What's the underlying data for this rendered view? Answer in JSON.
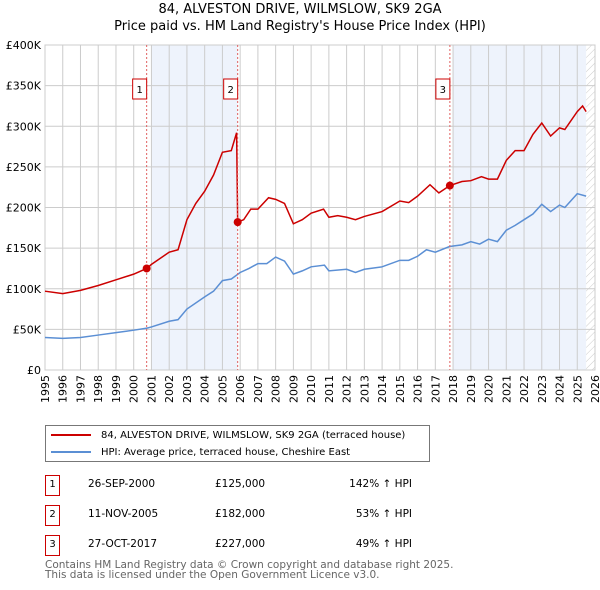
{
  "chart_data": {
    "type": "line",
    "title": "84, ALVESTON DRIVE, WILMSLOW, SK9 2GA",
    "subtitle": "Price paid vs. HM Land Registry's House Price Index (HPI)",
    "xlim": [
      1995,
      2026
    ],
    "ylim": [
      0,
      400000
    ],
    "x_ticks": [
      "1995",
      "1996",
      "1997",
      "1998",
      "1999",
      "2000",
      "2001",
      "2002",
      "2003",
      "2004",
      "2005",
      "2006",
      "2007",
      "2008",
      "2009",
      "2010",
      "2011",
      "2012",
      "2013",
      "2014",
      "2015",
      "2016",
      "2017",
      "2018",
      "2019",
      "2020",
      "2021",
      "2022",
      "2023",
      "2024",
      "2025",
      "2026"
    ],
    "y_ticks": [
      {
        "v": 0,
        "label": "£0"
      },
      {
        "v": 50000,
        "label": "£50K"
      },
      {
        "v": 100000,
        "label": "£100K"
      },
      {
        "v": 150000,
        "label": "£150K"
      },
      {
        "v": 200000,
        "label": "£200K"
      },
      {
        "v": 250000,
        "label": "£250K"
      },
      {
        "v": 300000,
        "label": "£300K"
      },
      {
        "v": 350000,
        "label": "£350K"
      },
      {
        "v": 400000,
        "label": "£400K"
      }
    ],
    "grid": true,
    "shaded_ranges": [
      [
        2001.0,
        2005.86
      ],
      [
        2018.0,
        2025.5
      ]
    ],
    "hatched_from": 2025.5,
    "series": [
      {
        "name": "84, ALVESTON DRIVE, WILMSLOW, SK9 2GA (terraced house)",
        "color": "#cc0000",
        "x": [
          1995,
          1996,
          1997,
          1998,
          1999,
          2000,
          2000.73,
          2001,
          2002,
          2002.5,
          2003,
          2003.5,
          2004,
          2004.5,
          2005,
          2005.5,
          2005.8,
          2005.86,
          2006.2,
          2006.6,
          2007,
          2007.6,
          2008,
          2008.5,
          2009,
          2009.5,
          2010,
          2010.7,
          2011,
          2011.5,
          2012,
          2012.5,
          2013,
          2014,
          2015,
          2015.5,
          2016,
          2016.7,
          2017.2,
          2017.82,
          2018.5,
          2019,
          2019.6,
          2020,
          2020.5,
          2021,
          2021.5,
          2022,
          2022.5,
          2023,
          2023.5,
          2024,
          2024.3,
          2025,
          2025.3,
          2025.5
        ],
        "y": [
          97000,
          94000,
          98000,
          104000,
          111000,
          118000,
          125000,
          130000,
          145000,
          148000,
          185000,
          205000,
          220000,
          240000,
          268000,
          270000,
          292000,
          182000,
          185000,
          198000,
          198000,
          212000,
          210000,
          205000,
          180000,
          185000,
          193000,
          198000,
          188000,
          190000,
          188000,
          185000,
          189000,
          195000,
          208000,
          206000,
          214000,
          228000,
          218000,
          227000,
          232000,
          233000,
          238000,
          235000,
          235000,
          258000,
          270000,
          270000,
          290000,
          304000,
          288000,
          298000,
          296000,
          318000,
          325000,
          318000
        ]
      },
      {
        "name": "HPI: Average price, terraced house, Cheshire East",
        "color": "#5b8fd4",
        "x": [
          1995,
          1996,
          1997,
          1998,
          1999,
          2000,
          2000.75,
          2001,
          2002,
          2002.5,
          2003,
          2004,
          2004.5,
          2005,
          2005.5,
          2006,
          2006.5,
          2007,
          2007.5,
          2008,
          2008.5,
          2009,
          2009.5,
          2010,
          2010.75,
          2011,
          2012,
          2012.5,
          2013,
          2014,
          2015,
          2015.5,
          2016,
          2016.5,
          2017,
          2017.8,
          2018.5,
          2019,
          2019.5,
          2020,
          2020.5,
          2021,
          2021.5,
          2022,
          2022.5,
          2023,
          2023.5,
          2024,
          2024.3,
          2025,
          2025.5
        ],
        "y": [
          40000,
          39000,
          40000,
          43000,
          46000,
          49000,
          51500,
          53000,
          60000,
          62000,
          75000,
          90000,
          97000,
          110000,
          112000,
          120000,
          125000,
          131000,
          131000,
          139000,
          134000,
          118000,
          122000,
          127000,
          129000,
          122000,
          124000,
          120000,
          124000,
          127000,
          135000,
          135000,
          140000,
          148000,
          145000,
          152000,
          154000,
          158000,
          155000,
          161000,
          158000,
          172000,
          178000,
          185000,
          192000,
          204000,
          195000,
          203000,
          200000,
          217000,
          214000
        ]
      }
    ],
    "sales": [
      {
        "id": "1",
        "x": 2000.73,
        "price": 125000,
        "date": "26-SEP-2000",
        "price_label": "£125,000",
        "hpi": "142% ↑ HPI"
      },
      {
        "id": "2",
        "x": 2005.86,
        "price": 182000,
        "date": "11-NOV-2005",
        "price_label": "£182,000",
        "hpi": "53% ↑ HPI"
      },
      {
        "id": "3",
        "x": 2017.82,
        "price": 227000,
        "date": "27-OCT-2017",
        "price_label": "£227,000",
        "hpi": "49% ↑ HPI"
      }
    ]
  },
  "footer": {
    "line1": "Contains HM Land Registry data © Crown copyright and database right 2025.",
    "line2": "This data is licensed under the Open Government Licence v3.0."
  }
}
